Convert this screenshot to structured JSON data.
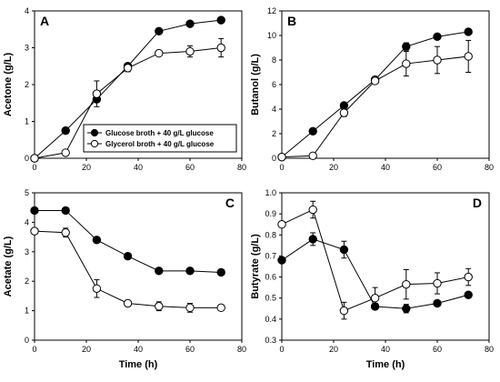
{
  "legend": {
    "items": [
      {
        "label": "Glucose broth + 40 g/L glucose",
        "marker": "filled",
        "series_index": 0
      },
      {
        "label": "Glycerol broth + 40 g/L glucose",
        "marker": "open",
        "series_index": 1
      }
    ]
  },
  "colors": {
    "filled_marker": "#000000",
    "open_marker": "#ffffff",
    "line": "#000000"
  },
  "chart_data": [
    {
      "type": "line",
      "panel": "A",
      "title": "",
      "xlabel": "",
      "ylabel": "Acetone (g/L)",
      "xlim": [
        0,
        80
      ],
      "ylim": [
        0,
        4
      ],
      "xticks": [
        0,
        20,
        40,
        60,
        80
      ],
      "yticks": [
        0,
        1,
        2,
        3,
        4
      ],
      "grid": false,
      "x": [
        0,
        12,
        24,
        36,
        48,
        60,
        72
      ],
      "series": [
        {
          "marker": "filled",
          "values": [
            0.0,
            0.75,
            1.6,
            2.5,
            3.45,
            3.65,
            3.75
          ],
          "errors": [
            0,
            0,
            0.05,
            0.05,
            0.05,
            0.05,
            0.05
          ]
        },
        {
          "marker": "open",
          "values": [
            0.0,
            0.15,
            1.75,
            2.45,
            2.85,
            2.9,
            3.0
          ],
          "errors": [
            0,
            0,
            0.35,
            0.1,
            0.05,
            0.15,
            0.25
          ]
        }
      ]
    },
    {
      "type": "line",
      "panel": "B",
      "title": "",
      "xlabel": "",
      "ylabel": "Butanol (g/L)",
      "xlim": [
        0,
        80
      ],
      "ylim": [
        0,
        12
      ],
      "xticks": [
        0,
        20,
        40,
        60,
        80
      ],
      "yticks": [
        0,
        2,
        4,
        6,
        8,
        10,
        12
      ],
      "grid": false,
      "x": [
        0,
        12,
        24,
        36,
        48,
        60,
        72
      ],
      "series": [
        {
          "marker": "filled",
          "values": [
            0.1,
            2.2,
            4.3,
            6.4,
            9.1,
            9.9,
            10.3
          ],
          "errors": [
            0,
            0,
            0.1,
            0.15,
            0.3,
            0.1,
            0.1
          ]
        },
        {
          "marker": "open",
          "values": [
            0.1,
            0.2,
            3.7,
            6.3,
            7.7,
            8.0,
            8.3
          ],
          "errors": [
            0,
            0,
            0.3,
            0.2,
            1.0,
            1.1,
            1.3
          ]
        }
      ]
    },
    {
      "type": "line",
      "panel": "C",
      "title": "",
      "xlabel": "Time (h)",
      "ylabel": "Acetate (g/L)",
      "xlim": [
        0,
        80
      ],
      "ylim": [
        0,
        5
      ],
      "xticks": [
        0,
        20,
        40,
        60,
        80
      ],
      "yticks": [
        0,
        1,
        2,
        3,
        4,
        5
      ],
      "grid": false,
      "x": [
        0,
        12,
        24,
        36,
        48,
        60,
        72
      ],
      "series": [
        {
          "marker": "filled",
          "values": [
            4.4,
            4.4,
            3.4,
            2.85,
            2.35,
            2.35,
            2.3
          ],
          "errors": [
            0.05,
            0.05,
            0.05,
            0.05,
            0.05,
            0.05,
            0.05
          ]
        },
        {
          "marker": "open",
          "values": [
            3.7,
            3.65,
            1.75,
            1.25,
            1.15,
            1.1,
            1.1
          ],
          "errors": [
            0.1,
            0.15,
            0.3,
            0.1,
            0.15,
            0.15,
            0.1
          ]
        }
      ]
    },
    {
      "type": "line",
      "panel": "D",
      "title": "",
      "xlabel": "Time (h)",
      "ylabel": "Butyrate (g/L)",
      "xlim": [
        0,
        80
      ],
      "ylim": [
        0.3,
        1.0
      ],
      "xticks": [
        0,
        20,
        40,
        60,
        80
      ],
      "yticks": [
        0.3,
        0.4,
        0.5,
        0.6,
        0.7,
        0.8,
        0.9,
        1.0
      ],
      "ytick_labels": [
        "0.3",
        "0.4",
        "0.5",
        "0.6",
        "0.7",
        "0.8",
        "0.9",
        "1.0"
      ],
      "grid": false,
      "x": [
        0,
        12,
        24,
        36,
        48,
        60,
        72
      ],
      "series": [
        {
          "marker": "filled",
          "values": [
            0.68,
            0.78,
            0.73,
            0.46,
            0.45,
            0.475,
            0.515
          ],
          "errors": [
            0,
            0.03,
            0.04,
            0.015,
            0.02,
            0.01,
            0.01
          ]
        },
        {
          "marker": "open",
          "values": [
            0.85,
            0.92,
            0.44,
            0.5,
            0.565,
            0.57,
            0.6
          ],
          "errors": [
            0,
            0.04,
            0.04,
            0.05,
            0.07,
            0.05,
            0.04
          ]
        }
      ]
    }
  ]
}
